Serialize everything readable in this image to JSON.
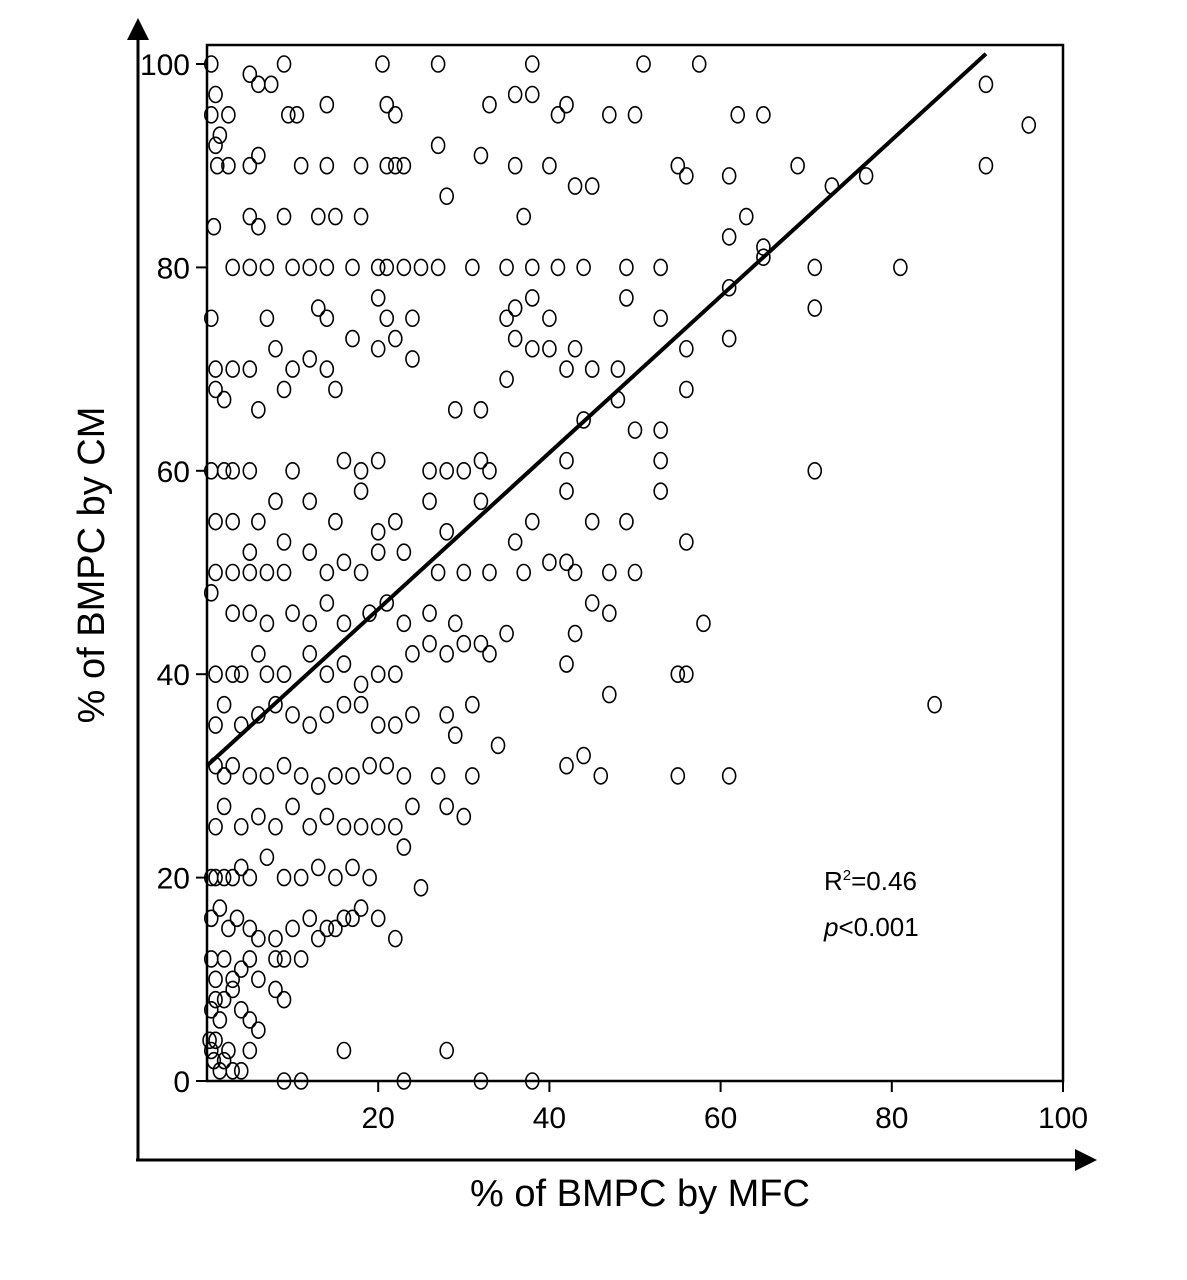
{
  "chart_data": {
    "type": "scatter",
    "xlabel": "% of BMPC by MFC",
    "ylabel": "% of BMPC by CM",
    "xlim": [
      0,
      100
    ],
    "ylim": [
      0,
      100
    ],
    "x_ticks": [
      {
        "value": 20,
        "label": "20"
      },
      {
        "value": 40,
        "label": "40"
      },
      {
        "value": 60,
        "label": "60"
      },
      {
        "value": 80,
        "label": "80"
      },
      {
        "value": 100,
        "label": "100"
      }
    ],
    "y_ticks": [
      {
        "value": 0,
        "label": "0"
      },
      {
        "value": 20,
        "label": "20"
      },
      {
        "value": 40,
        "label": "40"
      },
      {
        "value": 60,
        "label": "60"
      },
      {
        "value": 80,
        "label": "80"
      },
      {
        "value": 100,
        "label": "100"
      }
    ],
    "grid": false,
    "marker": "open-circle",
    "trendline": {
      "x0": 0,
      "y0": 31,
      "x1": 91,
      "y1": 101
    },
    "annotations": {
      "r2_base": "R",
      "r2_sup": "2",
      "r2_value": "=0.46",
      "p_italic": "p",
      "p_value": "<0.001"
    },
    "points": [
      [
        0.5,
        100
      ],
      [
        9,
        100
      ],
      [
        20.5,
        100
      ],
      [
        27,
        100
      ],
      [
        38,
        100
      ],
      [
        51,
        100
      ],
      [
        57.5,
        100
      ],
      [
        0.5,
        95
      ],
      [
        1,
        97
      ],
      [
        1.5,
        93
      ],
      [
        2.5,
        95
      ],
      [
        5,
        99
      ],
      [
        6,
        98
      ],
      [
        7.5,
        98
      ],
      [
        9.5,
        95
      ],
      [
        10.5,
        95
      ],
      [
        14,
        96
      ],
      [
        21,
        96
      ],
      [
        22,
        95
      ],
      [
        33,
        96
      ],
      [
        36,
        97
      ],
      [
        38,
        97
      ],
      [
        41,
        95
      ],
      [
        42,
        96
      ],
      [
        47,
        95
      ],
      [
        50,
        95
      ],
      [
        62,
        95
      ],
      [
        65,
        95
      ],
      [
        91,
        98
      ],
      [
        96,
        94
      ],
      [
        1,
        92
      ],
      [
        1.2,
        90
      ],
      [
        2.5,
        90
      ],
      [
        5,
        90
      ],
      [
        6,
        91
      ],
      [
        11,
        90
      ],
      [
        14,
        90
      ],
      [
        18,
        90
      ],
      [
        21,
        90
      ],
      [
        22,
        90
      ],
      [
        23,
        90
      ],
      [
        27,
        92
      ],
      [
        32,
        91
      ],
      [
        36,
        90
      ],
      [
        40,
        90
      ],
      [
        43,
        88
      ],
      [
        45,
        88
      ],
      [
        55,
        90
      ],
      [
        56,
        89
      ],
      [
        61,
        89
      ],
      [
        69,
        90
      ],
      [
        73,
        88
      ],
      [
        77,
        89
      ],
      [
        91,
        90
      ],
      [
        0.8,
        84
      ],
      [
        5,
        85
      ],
      [
        6,
        84
      ],
      [
        9,
        85
      ],
      [
        13,
        85
      ],
      [
        15,
        85
      ],
      [
        18,
        85
      ],
      [
        28,
        87
      ],
      [
        37,
        85
      ],
      [
        61,
        83
      ],
      [
        63,
        85
      ],
      [
        65,
        82
      ],
      [
        65,
        81
      ],
      [
        3,
        80
      ],
      [
        5,
        80
      ],
      [
        7,
        80
      ],
      [
        10,
        80
      ],
      [
        12,
        80
      ],
      [
        14,
        80
      ],
      [
        17,
        80
      ],
      [
        20,
        80
      ],
      [
        21,
        80
      ],
      [
        23,
        80
      ],
      [
        25,
        80
      ],
      [
        27,
        80
      ],
      [
        31,
        80
      ],
      [
        35,
        80
      ],
      [
        38,
        80
      ],
      [
        41,
        80
      ],
      [
        44,
        80
      ],
      [
        49,
        80
      ],
      [
        53,
        80
      ],
      [
        61,
        78
      ],
      [
        71,
        80
      ],
      [
        81,
        80
      ],
      [
        49,
        77
      ],
      [
        38,
        77
      ],
      [
        36,
        76
      ],
      [
        0.5,
        75
      ],
      [
        7,
        75
      ],
      [
        13,
        76
      ],
      [
        14,
        75
      ],
      [
        17,
        73
      ],
      [
        20,
        77
      ],
      [
        21,
        75
      ],
      [
        24,
        75
      ],
      [
        35,
        75
      ],
      [
        40,
        75
      ],
      [
        43,
        72
      ],
      [
        53,
        75
      ],
      [
        71,
        76
      ],
      [
        1,
        70
      ],
      [
        3,
        70
      ],
      [
        5,
        70
      ],
      [
        8,
        72
      ],
      [
        10,
        70
      ],
      [
        12,
        71
      ],
      [
        14,
        70
      ],
      [
        20,
        72
      ],
      [
        22,
        73
      ],
      [
        24,
        71
      ],
      [
        36,
        73
      ],
      [
        38,
        72
      ],
      [
        40,
        72
      ],
      [
        42,
        70
      ],
      [
        45,
        70
      ],
      [
        48,
        70
      ],
      [
        56,
        72
      ],
      [
        61,
        73
      ],
      [
        1,
        68
      ],
      [
        2,
        67
      ],
      [
        6,
        66
      ],
      [
        9,
        68
      ],
      [
        15,
        68
      ],
      [
        29,
        66
      ],
      [
        32,
        66
      ],
      [
        35,
        69
      ],
      [
        44,
        65
      ],
      [
        48,
        67
      ],
      [
        56,
        68
      ],
      [
        50,
        64
      ],
      [
        53,
        64
      ],
      [
        0.5,
        60
      ],
      [
        2,
        60
      ],
      [
        3,
        60
      ],
      [
        5,
        60
      ],
      [
        10,
        60
      ],
      [
        16,
        61
      ],
      [
        18,
        60
      ],
      [
        20,
        61
      ],
      [
        26,
        60
      ],
      [
        28,
        60
      ],
      [
        30,
        60
      ],
      [
        32,
        61
      ],
      [
        33,
        60
      ],
      [
        42,
        61
      ],
      [
        71,
        60
      ],
      [
        53,
        58
      ],
      [
        53,
        61
      ],
      [
        1,
        55
      ],
      [
        3,
        55
      ],
      [
        5,
        52
      ],
      [
        6,
        55
      ],
      [
        8,
        57
      ],
      [
        9,
        53
      ],
      [
        12,
        57
      ],
      [
        15,
        55
      ],
      [
        18,
        58
      ],
      [
        20,
        54
      ],
      [
        22,
        55
      ],
      [
        26,
        57
      ],
      [
        28,
        54
      ],
      [
        32,
        57
      ],
      [
        36,
        53
      ],
      [
        38,
        55
      ],
      [
        42,
        58
      ],
      [
        45,
        55
      ],
      [
        49,
        55
      ],
      [
        56,
        53
      ],
      [
        1,
        50
      ],
      [
        3,
        50
      ],
      [
        5,
        50
      ],
      [
        7,
        50
      ],
      [
        9,
        50
      ],
      [
        12,
        52
      ],
      [
        14,
        50
      ],
      [
        16,
        51
      ],
      [
        18,
        50
      ],
      [
        20,
        52
      ],
      [
        23,
        52
      ],
      [
        27,
        50
      ],
      [
        30,
        50
      ],
      [
        33,
        50
      ],
      [
        37,
        50
      ],
      [
        40,
        51
      ],
      [
        42,
        51
      ],
      [
        43,
        50
      ],
      [
        47,
        50
      ],
      [
        50,
        50
      ],
      [
        0.5,
        48
      ],
      [
        3,
        46
      ],
      [
        5,
        46
      ],
      [
        7,
        45
      ],
      [
        10,
        46
      ],
      [
        12,
        45
      ],
      [
        14,
        47
      ],
      [
        16,
        45
      ],
      [
        19,
        46
      ],
      [
        21,
        47
      ],
      [
        23,
        45
      ],
      [
        26,
        46
      ],
      [
        29,
        45
      ],
      [
        32,
        43
      ],
      [
        35,
        44
      ],
      [
        43,
        44
      ],
      [
        45,
        47
      ],
      [
        47,
        46
      ],
      [
        58,
        45
      ],
      [
        1,
        40
      ],
      [
        3,
        40
      ],
      [
        4,
        40
      ],
      [
        6,
        42
      ],
      [
        7,
        40
      ],
      [
        9,
        40
      ],
      [
        12,
        42
      ],
      [
        14,
        40
      ],
      [
        16,
        41
      ],
      [
        18,
        39
      ],
      [
        20,
        40
      ],
      [
        22,
        40
      ],
      [
        24,
        42
      ],
      [
        26,
        43
      ],
      [
        28,
        42
      ],
      [
        30,
        43
      ],
      [
        33,
        42
      ],
      [
        42,
        41
      ],
      [
        47,
        38
      ],
      [
        55,
        40
      ],
      [
        56,
        40
      ],
      [
        85,
        37
      ],
      [
        1,
        35
      ],
      [
        2,
        37
      ],
      [
        4,
        35
      ],
      [
        6,
        36
      ],
      [
        8,
        37
      ],
      [
        10,
        36
      ],
      [
        12,
        35
      ],
      [
        14,
        36
      ],
      [
        16,
        37
      ],
      [
        18,
        37
      ],
      [
        20,
        35
      ],
      [
        22,
        35
      ],
      [
        24,
        36
      ],
      [
        28,
        36
      ],
      [
        29,
        34
      ],
      [
        31,
        37
      ],
      [
        34,
        33
      ],
      [
        1,
        31
      ],
      [
        2,
        30
      ],
      [
        3,
        31
      ],
      [
        5,
        30
      ],
      [
        7,
        30
      ],
      [
        9,
        31
      ],
      [
        11,
        30
      ],
      [
        13,
        29
      ],
      [
        15,
        30
      ],
      [
        17,
        30
      ],
      [
        19,
        31
      ],
      [
        21,
        31
      ],
      [
        23,
        30
      ],
      [
        27,
        30
      ],
      [
        31,
        30
      ],
      [
        42,
        31
      ],
      [
        44,
        32
      ],
      [
        46,
        30
      ],
      [
        55,
        30
      ],
      [
        61,
        30
      ],
      [
        1,
        25
      ],
      [
        2,
        27
      ],
      [
        4,
        25
      ],
      [
        6,
        26
      ],
      [
        8,
        25
      ],
      [
        10,
        27
      ],
      [
        12,
        25
      ],
      [
        14,
        26
      ],
      [
        16,
        25
      ],
      [
        18,
        25
      ],
      [
        20,
        25
      ],
      [
        22,
        25
      ],
      [
        24,
        27
      ],
      [
        28,
        27
      ],
      [
        30,
        26
      ],
      [
        0.5,
        20
      ],
      [
        1,
        20
      ],
      [
        2,
        20
      ],
      [
        3,
        20
      ],
      [
        4,
        21
      ],
      [
        5,
        20
      ],
      [
        7,
        22
      ],
      [
        9,
        20
      ],
      [
        11,
        20
      ],
      [
        13,
        21
      ],
      [
        15,
        20
      ],
      [
        17,
        21
      ],
      [
        19,
        20
      ],
      [
        23,
        23
      ],
      [
        25,
        19
      ],
      [
        0.5,
        16
      ],
      [
        1.5,
        17
      ],
      [
        2.5,
        15
      ],
      [
        3.5,
        16
      ],
      [
        5,
        15
      ],
      [
        6,
        14
      ],
      [
        8,
        14
      ],
      [
        10,
        15
      ],
      [
        12,
        16
      ],
      [
        14,
        15
      ],
      [
        16,
        16
      ],
      [
        18,
        17
      ],
      [
        20,
        16
      ],
      [
        22,
        14
      ],
      [
        0.5,
        12
      ],
      [
        1,
        10
      ],
      [
        2,
        12
      ],
      [
        3,
        10
      ],
      [
        4,
        11
      ],
      [
        5,
        12
      ],
      [
        6,
        10
      ],
      [
        8,
        12
      ],
      [
        9,
        12
      ],
      [
        11,
        12
      ],
      [
        13,
        14
      ],
      [
        15,
        15
      ],
      [
        17,
        16
      ],
      [
        0.5,
        7
      ],
      [
        1,
        8
      ],
      [
        1.5,
        6
      ],
      [
        2,
        8
      ],
      [
        3,
        9
      ],
      [
        4,
        7
      ],
      [
        5,
        6
      ],
      [
        6,
        5
      ],
      [
        8,
        9
      ],
      [
        9,
        8
      ],
      [
        0.3,
        4
      ],
      [
        0.5,
        3
      ],
      [
        0.8,
        2
      ],
      [
        1,
        4
      ],
      [
        1.5,
        1
      ],
      [
        2,
        2
      ],
      [
        2.5,
        3
      ],
      [
        3,
        1
      ],
      [
        4,
        1
      ],
      [
        5,
        3
      ],
      [
        16,
        3
      ],
      [
        28,
        3
      ],
      [
        9,
        0
      ],
      [
        11,
        0
      ],
      [
        23,
        0
      ],
      [
        32,
        0
      ],
      [
        38,
        0
      ]
    ]
  }
}
